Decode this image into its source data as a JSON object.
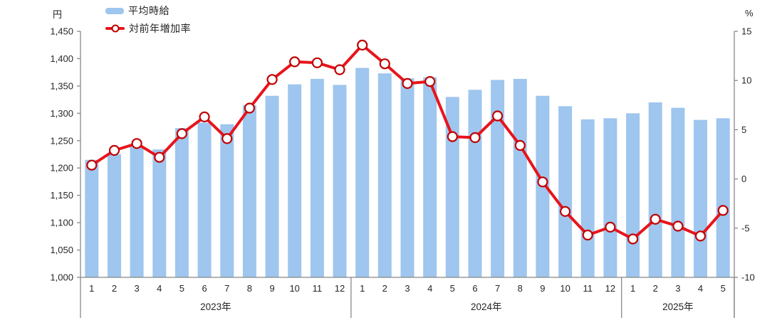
{
  "legend": {
    "bar_label": "平均時給",
    "line_label": "対前年増加率"
  },
  "colors": {
    "bar": "#9EC6EE",
    "line": "#E8141C",
    "marker_fill": "#FFFFFF",
    "marker_stroke": "#C00000",
    "axis": "#888888",
    "label_text": "#262626"
  },
  "chart_data": {
    "type": "combo bar+line",
    "title": "",
    "legend_position": "top-left",
    "grid": false,
    "groups": [
      {
        "year": "2023年",
        "months": [
          "1",
          "2",
          "3",
          "4",
          "5",
          "6",
          "7",
          "8",
          "9",
          "10",
          "11",
          "12"
        ]
      },
      {
        "year": "2024年",
        "months": [
          "1",
          "2",
          "3",
          "4",
          "5",
          "6",
          "7",
          "8",
          "9",
          "10",
          "11",
          "12"
        ]
      },
      {
        "year": "2025年",
        "months": [
          "1",
          "2",
          "3",
          "4",
          "5"
        ]
      }
    ],
    "series": [
      {
        "name": "平均時給",
        "type": "bar",
        "axis": "left",
        "unit": "円",
        "values": [
          1215,
          1225,
          1239,
          1234,
          1273,
          1283,
          1280,
          1315,
          1332,
          1353,
          1363,
          1352,
          1383,
          1373,
          1364,
          1366,
          1330,
          1343,
          1361,
          1363,
          1332,
          1313,
          1289,
          1291,
          1300,
          1320,
          1310,
          1288,
          1291
        ]
      },
      {
        "name": "対前年増加率",
        "type": "line",
        "axis": "right",
        "unit": "%",
        "values": [
          1.4,
          2.9,
          3.6,
          2.2,
          4.6,
          6.3,
          4.1,
          7.2,
          10.1,
          11.9,
          11.8,
          11.1,
          13.6,
          11.7,
          9.7,
          9.9,
          4.3,
          4.2,
          6.4,
          3.4,
          -0.3,
          -3.3,
          -5.7,
          -4.9,
          -6.1,
          -4.1,
          -4.8,
          -5.8,
          -3.2
        ]
      }
    ],
    "left_axis": {
      "unit": "円",
      "min": 1000,
      "max": 1450,
      "step": 50,
      "tick_labels": [
        "1,450",
        "1,400",
        "1,350",
        "1,300",
        "1,250",
        "1,200",
        "1,150",
        "1,100",
        "1,050",
        "1,000"
      ]
    },
    "right_axis": {
      "unit": "%",
      "min": -10,
      "max": 15,
      "step": 5,
      "tick_labels": [
        "15",
        "10",
        "5",
        "0",
        "-5",
        "-10"
      ]
    }
  }
}
